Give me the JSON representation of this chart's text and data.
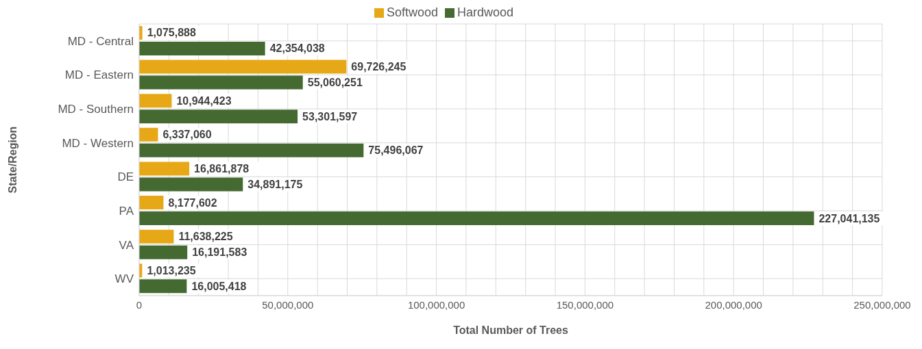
{
  "chart_data": {
    "type": "bar",
    "orientation": "horizontal",
    "xlabel": "Total Number of Trees",
    "ylabel": "State/Region",
    "categories": [
      "MD - Central",
      "MD - Eastern",
      "MD - Southern",
      "MD - Western",
      "DE",
      "PA",
      "VA",
      "WV"
    ],
    "series": [
      {
        "name": "Softwood",
        "color": "#e6a817",
        "values": [
          1075888,
          69726245,
          10944423,
          6337060,
          16861878,
          8177602,
          11638225,
          1013235
        ],
        "value_labels": [
          "1,075,888",
          "69,726,245",
          "10,944,423",
          "6,337,060",
          "16,861,878",
          "8,177,602",
          "11,638,225",
          "1,013,235"
        ]
      },
      {
        "name": "Hardwood",
        "color": "#446a32",
        "values": [
          42354038,
          55060251,
          53301597,
          75496067,
          34891175,
          227041135,
          16191583,
          16005418
        ],
        "value_labels": [
          "42,354,038",
          "55,060,251",
          "53,301,597",
          "75,496,067",
          "34,891,175",
          "227,041,135",
          "16,191,583",
          "16,005,418"
        ]
      }
    ],
    "xlim": [
      0,
      250000000
    ],
    "xticks": [
      {
        "value": 0,
        "label": "0"
      },
      {
        "value": 10000000,
        "label": null
      },
      {
        "value": 20000000,
        "label": null
      },
      {
        "value": 30000000,
        "label": null
      },
      {
        "value": 40000000,
        "label": null
      },
      {
        "value": 50000000,
        "label": "50,000,000"
      },
      {
        "value": 60000000,
        "label": null
      },
      {
        "value": 70000000,
        "label": null
      },
      {
        "value": 80000000,
        "label": null
      },
      {
        "value": 90000000,
        "label": null
      },
      {
        "value": 100000000,
        "label": "100,000,000"
      },
      {
        "value": 110000000,
        "label": null
      },
      {
        "value": 120000000,
        "label": null
      },
      {
        "value": 130000000,
        "label": null
      },
      {
        "value": 140000000,
        "label": null
      },
      {
        "value": 150000000,
        "label": "150,000,000"
      },
      {
        "value": 160000000,
        "label": null
      },
      {
        "value": 170000000,
        "label": null
      },
      {
        "value": 180000000,
        "label": null
      },
      {
        "value": 190000000,
        "label": null
      },
      {
        "value": 200000000,
        "label": "200,000,000"
      },
      {
        "value": 210000000,
        "label": null
      },
      {
        "value": 220000000,
        "label": null
      },
      {
        "value": 230000000,
        "label": null
      },
      {
        "value": 240000000,
        "label": null
      },
      {
        "value": 250000000,
        "label": "250,000,000"
      }
    ],
    "grid": true,
    "legend": "top"
  }
}
